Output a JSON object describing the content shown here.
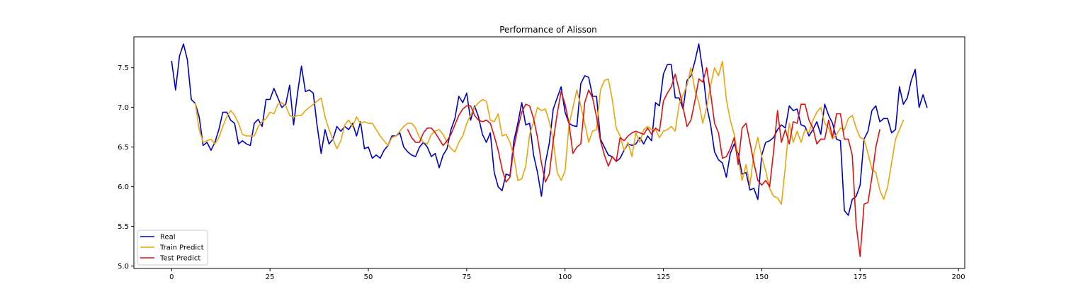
{
  "chart_data": {
    "type": "line",
    "title": "Performance of Alisson",
    "xlabel": "",
    "ylabel": "",
    "xlim": [
      -9.6,
      201.6
    ],
    "ylim": [
      4.97,
      7.89
    ],
    "xticks": [
      0,
      25,
      50,
      75,
      100,
      125,
      150,
      175,
      200
    ],
    "yticks": [
      5.0,
      5.5,
      6.0,
      6.5,
      7.0,
      7.5
    ],
    "grid": false,
    "legend_position": "bottom-left",
    "series": [
      {
        "name": "Real",
        "color": "#0000cc",
        "x_start": 0,
        "values": [
          7.58,
          7.22,
          7.65,
          7.8,
          7.6,
          7.1,
          7.05,
          6.88,
          6.52,
          6.56,
          6.46,
          6.56,
          6.72,
          6.94,
          6.94,
          6.84,
          6.8,
          6.54,
          6.58,
          6.54,
          6.52,
          6.8,
          6.85,
          6.76,
          7.1,
          7.1,
          7.24,
          7.12,
          7.0,
          7.04,
          7.28,
          6.78,
          7.18,
          7.52,
          7.2,
          7.22,
          7.18,
          6.76,
          6.42,
          6.72,
          6.54,
          6.6,
          6.76,
          6.7,
          6.76,
          6.72,
          6.8,
          6.64,
          6.82,
          6.48,
          6.5,
          6.36,
          6.4,
          6.36,
          6.46,
          6.52,
          6.64,
          6.64,
          6.68,
          6.5,
          6.44,
          6.4,
          6.38,
          6.5,
          6.56,
          6.5,
          6.38,
          6.42,
          6.24,
          6.4,
          6.48,
          6.72,
          6.86,
          7.14,
          7.06,
          7.18,
          6.84,
          7.02,
          6.88,
          6.66,
          6.56,
          6.68,
          6.18,
          6.0,
          5.95,
          6.16,
          6.14,
          6.58,
          6.8,
          7.06,
          6.78,
          6.8,
          6.4,
          6.18,
          5.88,
          6.3,
          6.55,
          6.98,
          7.12,
          7.26,
          6.94,
          6.8,
          6.77,
          6.76,
          7.3,
          7.4,
          7.38,
          7.14,
          7.14,
          6.6,
          6.5,
          6.4,
          6.38,
          6.32,
          6.36,
          6.46,
          6.54,
          6.52,
          6.54,
          6.62,
          6.54,
          6.64,
          6.58,
          7.06,
          7.02,
          7.42,
          7.54,
          7.54,
          7.12,
          7.12,
          6.98,
          7.34,
          7.4,
          7.58,
          7.8,
          7.46,
          7.02,
          6.78,
          6.44,
          6.34,
          6.3,
          6.12,
          6.42,
          6.54,
          6.42,
          6.16,
          6.18,
          5.96,
          5.98,
          5.84,
          6.4,
          6.56,
          6.58,
          6.62,
          6.72,
          6.78,
          6.74,
          7.02,
          6.96,
          6.98,
          6.78,
          6.76,
          6.64,
          6.72,
          6.82,
          6.66,
          7.04,
          6.9,
          6.8,
          6.6,
          6.58,
          5.7,
          5.64,
          5.84,
          5.88,
          6.02,
          6.6,
          6.7,
          6.96,
          7.02,
          6.82,
          6.86,
          6.86,
          6.68,
          6.72,
          7.26,
          7.04,
          7.12,
          7.34,
          7.48,
          7.0,
          7.16,
          7.0
        ]
      },
      {
        "name": "Train Predict",
        "color": "#f0a30a",
        "x_start": 6,
        "values": [
          7.06,
          6.72,
          6.56,
          6.58,
          6.6,
          6.54,
          6.62,
          6.76,
          6.88,
          6.96,
          6.9,
          6.8,
          6.66,
          6.64,
          6.64,
          6.64,
          6.76,
          6.82,
          6.86,
          6.94,
          6.92,
          7.04,
          7.06,
          7.02,
          6.9,
          6.88,
          6.9,
          6.9,
          6.96,
          7.0,
          7.04,
          7.08,
          7.12,
          6.88,
          6.72,
          6.6,
          6.48,
          6.58,
          6.78,
          6.84,
          6.76,
          6.88,
          6.8,
          6.82,
          6.8,
          6.8,
          6.72,
          6.64,
          6.58,
          6.52,
          6.62,
          6.64,
          6.7,
          6.76,
          6.8,
          6.8,
          6.74,
          6.62,
          6.56,
          6.54,
          6.66,
          6.7,
          6.72,
          6.66,
          6.56,
          6.48,
          6.44,
          6.56,
          6.64,
          6.8,
          6.9,
          7.0,
          7.06,
          7.1,
          7.08,
          6.84,
          6.82,
          6.92,
          6.64,
          6.66,
          6.56,
          6.38,
          6.08,
          6.1,
          6.26,
          6.66,
          6.82,
          7.0,
          6.96,
          6.98,
          6.82,
          6.58,
          6.18,
          6.08,
          6.2,
          6.78,
          7.0,
          7.22,
          7.02,
          6.8,
          6.56,
          6.7,
          6.72,
          7.22,
          7.34,
          7.36,
          7.1,
          6.74,
          6.64,
          6.46,
          6.56,
          6.38,
          6.68,
          6.56,
          6.72,
          6.76,
          6.72,
          6.72,
          6.62,
          6.7,
          6.72,
          6.76,
          6.7,
          7.04,
          7.16,
          7.28,
          7.5,
          7.22,
          7.06,
          6.8,
          7.0,
          7.28,
          7.5,
          7.4,
          7.58,
          7.1,
          6.84,
          6.66,
          6.36,
          6.08,
          6.28,
          6.02,
          6.42,
          6.62,
          6.38,
          6.2,
          5.98,
          5.88,
          5.86,
          5.78,
          6.26,
          6.8,
          6.56,
          6.7,
          6.56,
          6.72,
          6.68,
          6.84,
          6.94,
          7.0,
          6.8,
          6.74,
          6.6,
          6.66,
          6.74,
          6.72,
          6.86,
          6.9,
          6.74,
          6.62,
          6.6,
          6.42,
          6.22,
          6.18,
          5.96,
          5.84,
          6.0,
          6.3,
          6.6,
          6.72,
          6.84
        ]
      },
      {
        "name": "Test Predict",
        "color": "#e01010",
        "x_start": 60,
        "values": [
          6.72,
          6.62,
          6.56,
          6.56,
          6.68,
          6.74,
          6.74,
          6.68,
          6.6,
          6.52,
          6.58,
          6.66,
          6.78,
          6.9,
          6.98,
          7.02,
          7.02,
          6.9,
          6.84,
          6.82,
          6.84,
          6.8,
          6.64,
          6.46,
          6.22,
          6.06,
          6.12,
          6.5,
          6.74,
          6.94,
          7.04,
          7.02,
          6.86,
          6.62,
          6.3,
          6.06,
          6.16,
          6.58,
          6.92,
          7.2,
          7.04,
          6.8,
          6.42,
          6.5,
          6.54,
          7.06,
          7.22,
          7.12,
          6.88,
          6.58,
          6.4,
          6.26,
          6.38,
          6.32,
          6.62,
          6.58,
          6.64,
          6.68,
          6.7,
          6.68,
          6.66,
          6.74,
          6.66,
          6.74,
          6.7,
          7.08,
          7.18,
          7.26,
          7.42,
          7.22,
          7.0,
          6.76,
          6.84,
          7.08,
          7.36,
          7.32,
          7.5,
          7.18,
          6.8,
          6.68,
          6.36,
          6.38,
          6.48,
          6.62,
          6.28,
          6.74,
          6.8,
          6.56,
          6.3,
          6.08,
          6.02,
          6.08,
          6.0,
          6.44,
          6.96,
          6.56,
          6.72,
          6.54,
          6.82,
          6.8,
          7.04,
          7.04,
          6.84,
          6.74,
          6.54,
          6.6,
          6.6,
          6.84,
          6.62,
          6.92,
          6.92,
          6.6,
          6.6,
          6.4,
          5.52,
          5.12,
          5.78,
          5.8,
          6.12,
          6.5,
          6.72
        ]
      }
    ]
  }
}
